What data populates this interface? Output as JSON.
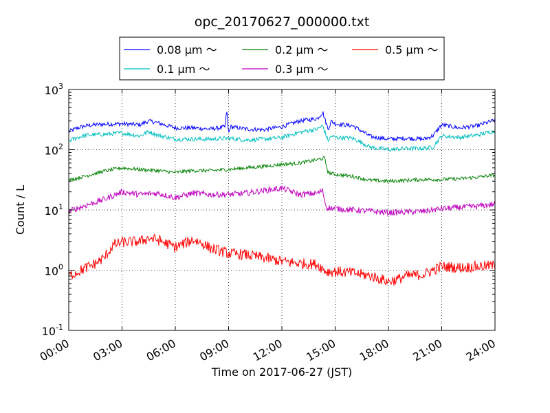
{
  "chart_data": {
    "type": "line",
    "title": "opc_20170627_000000.txt",
    "xlabel": "Time on 2017-06-27 (JST)",
    "ylabel": "Count / L",
    "x_unit": "hours",
    "xlim": [
      0,
      24
    ],
    "ylim": [
      0.1,
      1000
    ],
    "y_scale": "log",
    "grid": true,
    "legend": "top-center",
    "x_ticks": [
      {
        "value": 0,
        "label": "00:00"
      },
      {
        "value": 3,
        "label": "03:00"
      },
      {
        "value": 6,
        "label": "06:00"
      },
      {
        "value": 9,
        "label": "09:00"
      },
      {
        "value": 12,
        "label": "12:00"
      },
      {
        "value": 15,
        "label": "15:00"
      },
      {
        "value": 18,
        "label": "18:00"
      },
      {
        "value": 21,
        "label": "21:00"
      },
      {
        "value": 24,
        "label": "24:00"
      }
    ],
    "y_ticks": [
      {
        "value": 0.1,
        "base": "10",
        "exp": "-1"
      },
      {
        "value": 1,
        "base": "10",
        "exp": "0"
      },
      {
        "value": 10,
        "base": "10",
        "exp": "1"
      },
      {
        "value": 100,
        "base": "10",
        "exp": "2"
      },
      {
        "value": 1000,
        "base": "10",
        "exp": "3"
      }
    ],
    "series": [
      {
        "name": "0.08 μm ～",
        "color": "#0000ff",
        "x": [
          0,
          0.5,
          1,
          1.5,
          2,
          3,
          4,
          4.5,
          5,
          6,
          7,
          8,
          8.8,
          8.9,
          9,
          9.1,
          10,
          11,
          12,
          13,
          14,
          14.3,
          14.6,
          14.8,
          15,
          16,
          17,
          18,
          19,
          20,
          20.5,
          21,
          22,
          23,
          24
        ],
        "values": [
          200,
          230,
          250,
          260,
          265,
          270,
          260,
          300,
          280,
          230,
          230,
          220,
          240,
          450,
          180,
          240,
          220,
          215,
          240,
          300,
          330,
          420,
          220,
          300,
          270,
          250,
          165,
          150,
          155,
          150,
          170,
          260,
          230,
          250,
          310
        ]
      },
      {
        "name": "0.1 μm ～",
        "color": "#00bfbf",
        "x": [
          0,
          0.5,
          1,
          2,
          3,
          4,
          4.5,
          5,
          6,
          7,
          8,
          9,
          10,
          11,
          12,
          13,
          14,
          14.3,
          14.6,
          14.8,
          15,
          16,
          17,
          18,
          19,
          20,
          20.5,
          21,
          22,
          23,
          24
        ],
        "values": [
          140,
          160,
          175,
          180,
          190,
          170,
          200,
          175,
          150,
          150,
          150,
          155,
          145,
          150,
          160,
          195,
          220,
          250,
          140,
          170,
          160,
          155,
          110,
          100,
          105,
          105,
          110,
          170,
          160,
          175,
          205
        ]
      },
      {
        "name": "0.2 μm ～",
        "color": "#008000",
        "x": [
          0,
          1,
          2,
          3,
          4,
          5,
          6,
          7,
          8,
          9,
          10,
          11,
          12,
          13,
          14,
          14.4,
          14.6,
          15,
          16,
          17,
          18,
          19,
          20,
          21,
          22,
          23,
          24
        ],
        "values": [
          31,
          37,
          44,
          50,
          47,
          45,
          42,
          45,
          45,
          47,
          50,
          53,
          57,
          60,
          68,
          73,
          42,
          39,
          36,
          31,
          30,
          31,
          32,
          32,
          33,
          35,
          38
        ]
      },
      {
        "name": "0.3 μm ～",
        "color": "#bf00bf",
        "x": [
          0,
          1,
          2,
          3,
          4,
          5,
          6,
          7,
          8,
          9,
          10,
          11,
          12,
          13,
          14,
          14.3,
          14.5,
          15,
          16,
          17,
          18,
          19,
          20,
          21,
          22,
          23,
          24
        ],
        "values": [
          9.5,
          12,
          15,
          20,
          18,
          19,
          16,
          19,
          18,
          18,
          19,
          21,
          23,
          18,
          19,
          21,
          11,
          10.5,
          10,
          9.5,
          9,
          9.2,
          9.5,
          10.5,
          11,
          11.5,
          12.5
        ]
      },
      {
        "name": "0.5 μm ～",
        "color": "#ff0000",
        "x": [
          0,
          1,
          1.5,
          2,
          2.5,
          3,
          4,
          4.5,
          5,
          6,
          7,
          7.5,
          8,
          9,
          10,
          11,
          12,
          13,
          14,
          14.5,
          15,
          16,
          17,
          18,
          18.5,
          19,
          20,
          20.5,
          21,
          22,
          23,
          24
        ],
        "values": [
          0.8,
          1.1,
          1.3,
          1.6,
          2.6,
          2.9,
          3.0,
          3.4,
          3.2,
          2.4,
          3.2,
          2.8,
          2.3,
          1.9,
          1.8,
          1.6,
          1.4,
          1.3,
          1.25,
          0.95,
          0.95,
          0.9,
          0.8,
          0.65,
          0.7,
          0.8,
          0.85,
          1.0,
          1.15,
          1.1,
          1.15,
          1.2
        ]
      }
    ]
  }
}
